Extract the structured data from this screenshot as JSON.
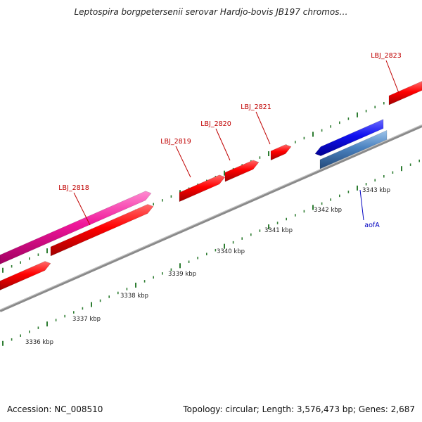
{
  "title": "Leptospira borgpetersenii serovar Hardjo-bovis JB197 chromos…",
  "footer": {
    "accession": "Accession: NC_008510",
    "stats": "Topology: circular; Length: 3,576,473 bp; Genes: 2,687"
  },
  "colors": {
    "forward_cds": "#e8001c",
    "highlight_cds": "#e8169a",
    "reverse_blue": "#1a1ae6",
    "reverse_steel": "#4a82c0",
    "backbone": "#8a8a8a",
    "tick": "#2e7d32",
    "gene_label": "#c00000",
    "rev_label": "#0000c0"
  },
  "axis": {
    "unit": "kbp",
    "ticks": [
      "3336 kbp",
      "3337 kbp",
      "3338 kbp",
      "3339 kbp",
      "3340 kbp",
      "3341 kbp",
      "3342 kbp",
      "3343 kbp"
    ]
  },
  "genes": [
    {
      "label": "LBJ_2818"
    },
    {
      "label": "LBJ_2819"
    },
    {
      "label": "LBJ_2820"
    },
    {
      "label": "LBJ_2821"
    },
    {
      "label": "LBJ_2823"
    },
    {
      "label": "aofA"
    }
  ]
}
